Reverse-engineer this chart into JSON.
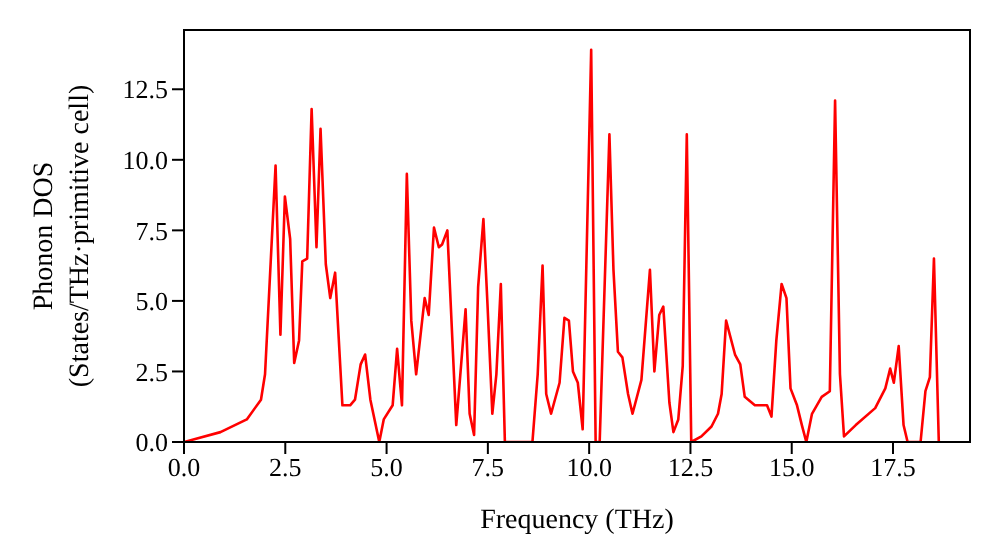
{
  "chart_data": {
    "type": "line",
    "xlabel": "Frequency (THz)",
    "ylabel": "Phonon DOS\n(States/THz·primitive cell)",
    "x": [
      0,
      0.9,
      1.55,
      1.9,
      2.0,
      2.26,
      2.38,
      2.49,
      2.62,
      2.72,
      2.84,
      2.92,
      3.04,
      3.15,
      3.27,
      3.37,
      3.5,
      3.61,
      3.73,
      3.91,
      4.1,
      4.22,
      4.36,
      4.47,
      4.6,
      4.82,
      4.93,
      5.15,
      5.26,
      5.38,
      5.5,
      5.61,
      5.73,
      5.94,
      6.04,
      6.17,
      6.29,
      6.37,
      6.5,
      6.72,
      6.95,
      7.05,
      7.16,
      7.26,
      7.39,
      7.49,
      7.61,
      7.71,
      7.82,
      7.92,
      8.6,
      8.73,
      8.85,
      8.94,
      9.06,
      9.27,
      9.39,
      9.5,
      9.6,
      9.72,
      9.84,
      10.05,
      10.16,
      10.26,
      10.5,
      10.6,
      10.71,
      10.82,
      10.96,
      11.07,
      11.29,
      11.5,
      11.61,
      11.73,
      11.83,
      11.98,
      12.08,
      12.2,
      12.31,
      12.41,
      12.52,
      12.77,
      13.02,
      13.18,
      13.27,
      13.38,
      13.6,
      13.73,
      13.84,
      14.09,
      14.39,
      14.5,
      14.62,
      14.75,
      14.87,
      14.97,
      15.13,
      15.25,
      15.36,
      15.5,
      15.74,
      15.94,
      16.07,
      16.19,
      16.29,
      16.58,
      17.06,
      17.31,
      17.43,
      17.52,
      17.64,
      17.76,
      17.86,
      18.18,
      18.3,
      18.41,
      18.51,
      18.63
    ],
    "series": [
      {
        "color": "#ff0000",
        "values": [
          0,
          0.35,
          0.8,
          1.5,
          2.4,
          9.8,
          3.8,
          8.7,
          7.2,
          2.8,
          3.6,
          6.4,
          6.5,
          11.8,
          6.9,
          11.1,
          6.3,
          5.1,
          6.0,
          1.3,
          1.3,
          1.5,
          2.75,
          3.1,
          1.5,
          0,
          0.8,
          1.3,
          3.3,
          1.3,
          9.5,
          4.3,
          2.4,
          5.1,
          4.5,
          7.6,
          6.9,
          7.0,
          7.5,
          0.6,
          4.7,
          1.0,
          0.25,
          5.5,
          7.9,
          4.9,
          1.0,
          2.4,
          5.6,
          0,
          0,
          2.4,
          6.25,
          1.7,
          1.0,
          2.1,
          4.4,
          4.3,
          2.5,
          2.1,
          0.45,
          13.9,
          0,
          0,
          10.9,
          6.1,
          3.2,
          3.0,
          1.7,
          1.0,
          2.2,
          6.1,
          2.5,
          4.5,
          4.8,
          1.4,
          0.35,
          0.8,
          2.7,
          10.9,
          0,
          0.2,
          0.55,
          1.0,
          1.7,
          4.3,
          3.1,
          2.75,
          1.6,
          1.3,
          1.3,
          0.9,
          3.6,
          5.6,
          5.1,
          1.9,
          1.3,
          0.6,
          0,
          1.0,
          1.6,
          1.8,
          12.1,
          2.4,
          0.2,
          0.6,
          1.2,
          1.9,
          2.6,
          2.1,
          3.4,
          0.6,
          0,
          0,
          1.8,
          2.3,
          6.5,
          0
        ]
      }
    ],
    "xlim": [
      0,
      19.4
    ],
    "xticks": [
      {
        "value": 0,
        "label": "0.0"
      },
      {
        "value": 2.5,
        "label": "2.5"
      },
      {
        "value": 5,
        "label": "5.0"
      },
      {
        "value": 7.5,
        "label": "7.5"
      },
      {
        "value": 10,
        "label": "10.0"
      },
      {
        "value": 12.5,
        "label": "12.5"
      },
      {
        "value": 15,
        "label": "15.0"
      },
      {
        "value": 17.5,
        "label": "17.5"
      }
    ],
    "ylim": [
      0,
      14.6
    ],
    "yticks": [
      {
        "value": 0,
        "label": "0.0"
      },
      {
        "value": 2.5,
        "label": "2.5"
      },
      {
        "value": 5,
        "label": "5.0"
      },
      {
        "value": 7.5,
        "label": "7.5"
      },
      {
        "value": 10,
        "label": "10.0"
      },
      {
        "value": 12.5,
        "label": "12.5"
      }
    ],
    "grid": false,
    "legend": false,
    "marker": "none",
    "line_style": "solid"
  }
}
